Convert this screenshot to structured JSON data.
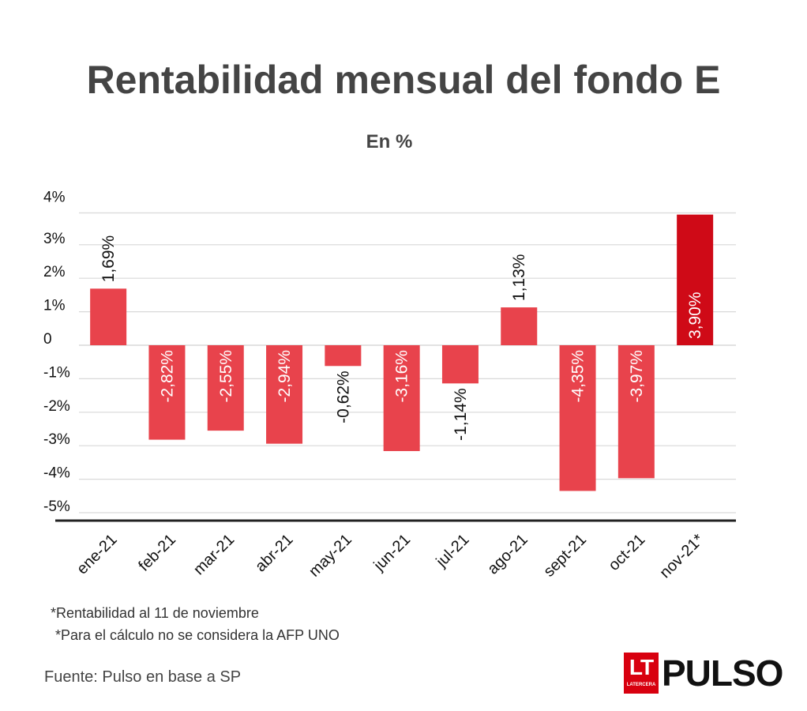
{
  "header": {
    "title": "Rentabilidad mensual del fondo E",
    "subtitle": "En %"
  },
  "notes": {
    "line1": "*Rentabilidad al  11 de noviembre",
    "line2": "*Para el cálculo no se considera la AFP UNO"
  },
  "source": "Fuente: Pulso en base a SP",
  "logo": {
    "lt": "LT",
    "lt_sub": "LATERCERA",
    "brand": "PULSO"
  },
  "colors": {
    "bar": "#e8434c",
    "bar_highlight": "#cf0a17",
    "grid": "#d9d9d9",
    "axis": "#222222",
    "text": "#111111",
    "label_inside": "#ffffff"
  },
  "chart_data": {
    "type": "bar",
    "categories": [
      "ene-21",
      "feb-21",
      "mar-21",
      "abr-21",
      "may-21",
      "jun-21",
      "jul-21",
      "ago-21",
      "sept-21",
      "oct-21",
      "nov-21*"
    ],
    "values": [
      1.69,
      -2.82,
      -2.55,
      -2.94,
      -0.62,
      -3.16,
      -1.14,
      1.13,
      -4.35,
      -3.97,
      3.9
    ],
    "data_labels": [
      "1,69%",
      "-2,82%",
      "-2,55%",
      "-2,94%",
      "-0,62%",
      "-3,16%",
      "-1,14%",
      "1,13%",
      "-4,35%",
      "-3,97%",
      "3,90%"
    ],
    "label_inside": [
      false,
      true,
      true,
      true,
      false,
      true,
      false,
      false,
      true,
      true,
      true
    ],
    "highlight": [
      false,
      false,
      false,
      false,
      false,
      false,
      false,
      false,
      false,
      false,
      true
    ],
    "y_ticks": [
      4,
      3,
      2,
      1,
      0,
      -1,
      -2,
      -3,
      -4,
      -5
    ],
    "y_tick_labels": [
      "4%",
      "3%",
      "2%",
      "1%",
      "0",
      "-1%",
      "-2%",
      "-3%",
      "-4%",
      "-5%"
    ],
    "ylim": [
      -5.5,
      4
    ],
    "grid": true
  }
}
